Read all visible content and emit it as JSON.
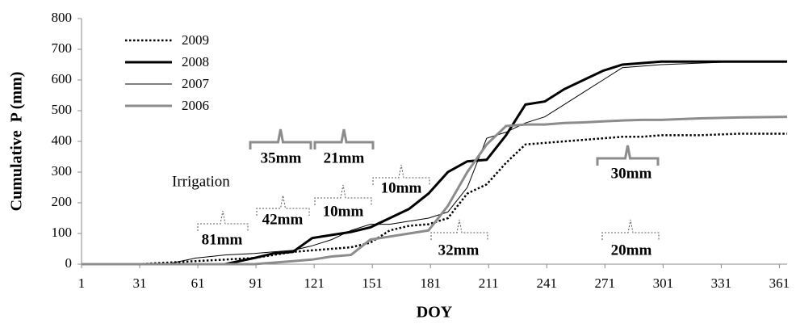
{
  "chart_data": {
    "type": "line",
    "x_label": "DOY",
    "y_label": "Cumulative  P (mm)",
    "x": [
      1,
      30,
      45,
      60,
      75,
      90,
      100,
      110,
      120,
      130,
      140,
      150,
      160,
      170,
      180,
      190,
      200,
      210,
      220,
      230,
      240,
      250,
      260,
      270,
      280,
      290,
      300,
      320,
      340,
      365
    ],
    "series": [
      {
        "name": "2009",
        "color": "#000000",
        "line_style": "dotted",
        "line_width": 2.5,
        "values": [
          0,
          0,
          5,
          10,
          15,
          20,
          30,
          40,
          45,
          50,
          55,
          70,
          110,
          125,
          130,
          150,
          230,
          260,
          330,
          390,
          395,
          400,
          405,
          410,
          415,
          415,
          420,
          420,
          425,
          425
        ]
      },
      {
        "name": "2008",
        "color": "#000000",
        "line_style": "solid",
        "line_width": 3,
        "values": [
          0,
          0,
          0,
          0,
          0,
          20,
          35,
          40,
          85,
          95,
          105,
          120,
          150,
          180,
          230,
          300,
          335,
          340,
          420,
          520,
          530,
          570,
          600,
          630,
          650,
          655,
          660,
          660,
          660,
          660
        ]
      },
      {
        "name": "2007",
        "color": "#000000",
        "line_style": "solid",
        "line_width": 1,
        "values": [
          0,
          0,
          0,
          20,
          30,
          35,
          40,
          45,
          60,
          80,
          110,
          130,
          130,
          140,
          150,
          170,
          250,
          410,
          430,
          460,
          480,
          520,
          560,
          600,
          640,
          645,
          650,
          655,
          660,
          660
        ]
      },
      {
        "name": "2006",
        "color": "#8c8c8c",
        "line_style": "solid",
        "line_width": 3,
        "values": [
          0,
          0,
          0,
          0,
          0,
          0,
          5,
          10,
          15,
          25,
          30,
          80,
          90,
          100,
          110,
          190,
          300,
          390,
          450,
          455,
          455,
          460,
          462,
          465,
          468,
          470,
          470,
          475,
          478,
          480
        ]
      }
    ],
    "xlim": [
      1,
      365
    ],
    "xticks": [
      1,
      31,
      61,
      91,
      121,
      151,
      181,
      211,
      241,
      271,
      301,
      331,
      361
    ],
    "ylim": [
      0,
      800
    ],
    "yticks": [
      0,
      100,
      200,
      300,
      400,
      500,
      600,
      700,
      800
    ],
    "legend": "top-left",
    "irrigation_label": "Irrigation",
    "annotations": [
      {
        "text": "81mm",
        "style": "dashed"
      },
      {
        "text": "42mm",
        "style": "dashed"
      },
      {
        "text": "35mm",
        "style": "solid"
      },
      {
        "text": "21mm",
        "style": "solid"
      },
      {
        "text": "10mm",
        "style": "dashed"
      },
      {
        "text": "10mm",
        "style": "dashed"
      },
      {
        "text": "32mm",
        "style": "dashed"
      },
      {
        "text": "30mm",
        "style": "solid"
      },
      {
        "text": "20mm",
        "style": "dashed"
      }
    ]
  }
}
